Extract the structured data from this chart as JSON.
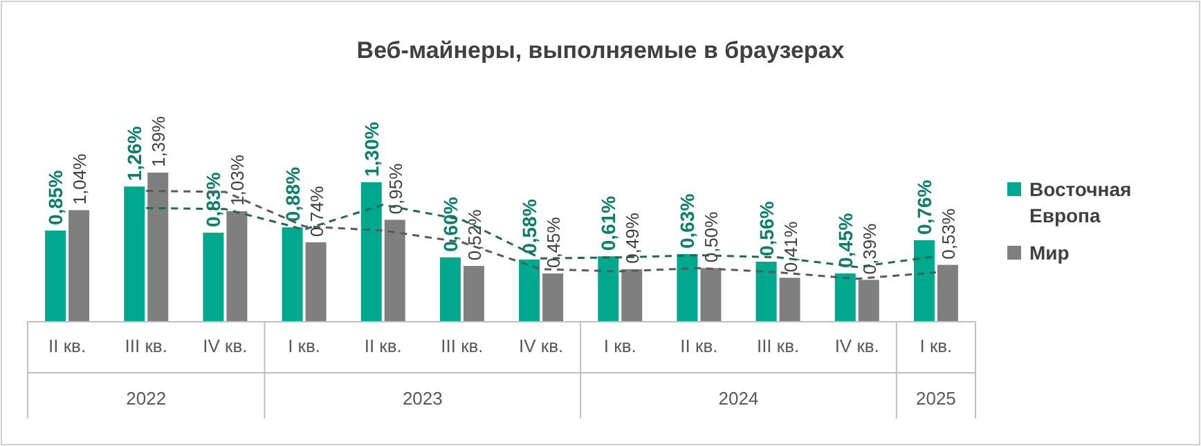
{
  "chart_data": {
    "type": "bar",
    "title": "Веб-майнеры, выполняемые в браузерах",
    "categories": [
      "II кв.",
      "III кв.",
      "IV кв.",
      "I кв.",
      "II кв.",
      "III кв.",
      "IV кв.",
      "I кв.",
      "II кв.",
      "III кв.",
      "IV кв.",
      "I кв."
    ],
    "series": [
      {
        "name": "Восточная Европа",
        "color": "#00a88e",
        "values": [
          0.85,
          1.26,
          0.83,
          0.88,
          1.3,
          0.6,
          0.58,
          0.61,
          0.63,
          0.56,
          0.45,
          0.76
        ],
        "value_labels": [
          "0,85%",
          "1,26%",
          "0,83%",
          "0,88%",
          "1,30%",
          "0,60%",
          "0,58%",
          "0,61%",
          "0,63%",
          "0,56%",
          "0,45%",
          "0,76%"
        ]
      },
      {
        "name": "Мир",
        "color": "#7f7f7f",
        "values": [
          1.04,
          1.39,
          1.03,
          0.74,
          0.95,
          0.52,
          0.45,
          0.49,
          0.5,
          0.41,
          0.39,
          0.53
        ],
        "value_labels": [
          "1,04%",
          "1,39%",
          "1,03%",
          "0,74%",
          "0,95%",
          "0,52%",
          "0,45%",
          "0,49%",
          "0,50%",
          "0,41%",
          "0,39%",
          "0,53%"
        ]
      },
      {
        "type": "line",
        "color": "#1f6b4f",
        "line_style": "dashed",
        "values": [
          null,
          1.06,
          1.05,
          0.86,
          1.09,
          0.95,
          0.59,
          0.6,
          0.62,
          0.6,
          0.51,
          0.61
        ]
      },
      {
        "type": "line",
        "color": "#595959",
        "line_style": "dashed",
        "values": [
          null,
          1.22,
          1.21,
          0.89,
          0.85,
          0.74,
          0.49,
          0.47,
          0.5,
          0.46,
          0.4,
          0.46
        ]
      }
    ],
    "annotations": [
      "2022",
      "2023",
      "2024",
      "2025"
    ],
    "legend": "right"
  }
}
